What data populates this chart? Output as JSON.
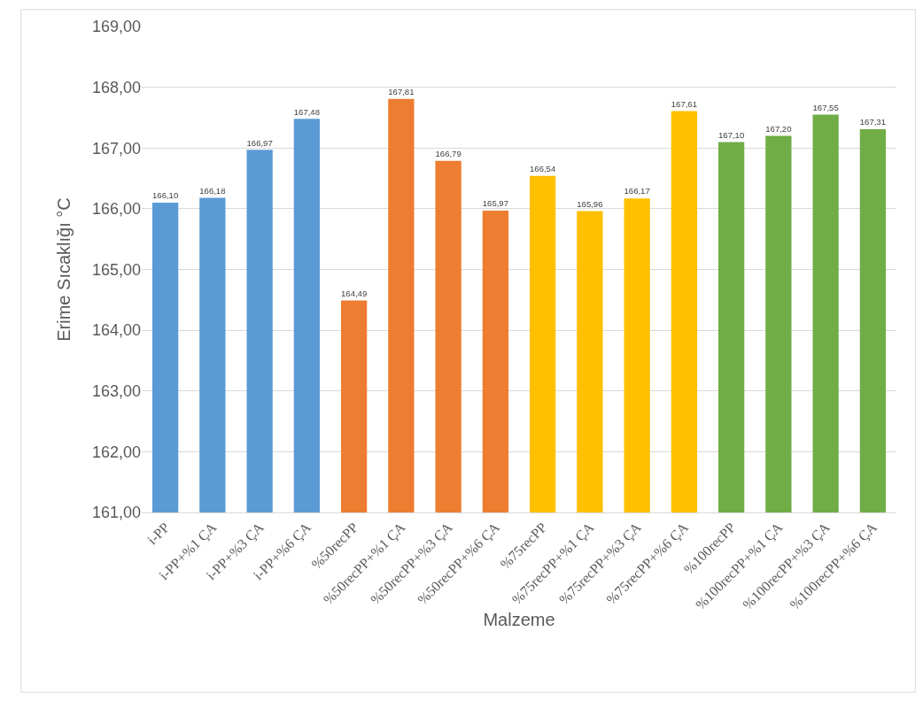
{
  "chart_data": {
    "type": "bar",
    "xlabel": "Malzeme",
    "ylabel": "Erime Sıcaklığı °C",
    "categories": [
      "i-PP",
      "i-PP+%1 ÇA",
      "i-PP+%3 ÇA",
      "i-PP+%6 ÇA",
      "%50recPP",
      "%50recPP+%1 ÇA",
      "%50recPP+%3 ÇA",
      "%50recPP+%6 ÇA",
      "%75recPP",
      "%75recPP+%1 ÇA",
      "%75recPP+%3 ÇA",
      "%75recPP+%6 ÇA",
      "%100recPP",
      "%100recPP+%1 ÇA",
      "%100recPP+%3 ÇA",
      "%100recPP+%6 ÇA"
    ],
    "values": [
      166.1,
      166.18,
      166.97,
      167.48,
      164.49,
      167.81,
      166.79,
      165.97,
      166.54,
      165.96,
      166.17,
      167.61,
      167.1,
      167.2,
      167.55,
      167.31
    ],
    "value_labels": [
      "166,10",
      "166,18",
      "166,97",
      "167,48",
      "164,49",
      "167,81",
      "166,79",
      "165,97",
      "166,54",
      "165,96",
      "166,17",
      "167,61",
      "167,10",
      "167,20",
      "167,55",
      "167,31"
    ],
    "colors": [
      "#5b9bd5",
      "#5b9bd5",
      "#5b9bd5",
      "#5b9bd5",
      "#ed7d31",
      "#ed7d31",
      "#ed7d31",
      "#ed7d31",
      "#ffc000",
      "#ffc000",
      "#ffc000",
      "#ffc000",
      "#70ad47",
      "#70ad47",
      "#70ad47",
      "#70ad47"
    ],
    "ylim": [
      161,
      169
    ],
    "yticks": [
      {
        "value": 161,
        "label": "161,00"
      },
      {
        "value": 162,
        "label": "162,00"
      },
      {
        "value": 163,
        "label": "163,00"
      },
      {
        "value": 164,
        "label": "164,00"
      },
      {
        "value": 165,
        "label": "165,00"
      },
      {
        "value": 166,
        "label": "166,00"
      },
      {
        "value": 167,
        "label": "167,00"
      },
      {
        "value": 168,
        "label": "168,00"
      },
      {
        "value": 169,
        "label": "169,00"
      }
    ],
    "grid": "y"
  }
}
